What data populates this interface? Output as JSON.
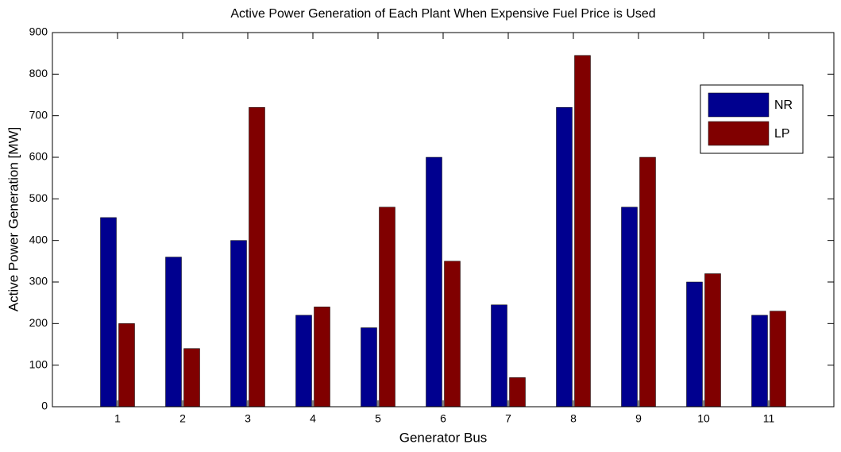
{
  "chart_data": {
    "type": "bar",
    "title": "Active Power Generation of Each Plant When Expensive Fuel Price is Used",
    "x_label": "Generator Bus",
    "y_label": "Active Power Generation [MW]",
    "categories": [
      "1",
      "2",
      "3",
      "4",
      "5",
      "6",
      "7",
      "8",
      "9",
      "10",
      "11"
    ],
    "series": [
      {
        "name": "NR",
        "color": "#00008f",
        "values": [
          455,
          360,
          400,
          220,
          190,
          600,
          245,
          720,
          480,
          300,
          220
        ]
      },
      {
        "name": "LP",
        "color": "#800000",
        "values": [
          200,
          140,
          720,
          240,
          480,
          350,
          70,
          845,
          600,
          320,
          230
        ]
      }
    ],
    "ylim": [
      0,
      900
    ],
    "yticks": [
      0,
      100,
      200,
      300,
      400,
      500,
      600,
      700,
      800,
      900
    ],
    "grid": false,
    "legend": "upper right"
  }
}
